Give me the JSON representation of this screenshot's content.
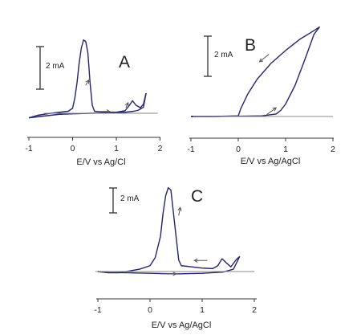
{
  "colors": {
    "curve": "#24246e",
    "axis": "#333333",
    "baseline": "#8a8a8a",
    "arrow": "#555555",
    "text": "#222222"
  },
  "chart_data": [
    {
      "type": "line",
      "panel_label": "A",
      "xlabel": "E/V vs Ag/Cl",
      "ylabel": "",
      "xlim": [
        -1,
        2
      ],
      "xticks": [
        -1,
        0,
        1,
        2
      ],
      "scale_bar": {
        "label": "2 mA",
        "value": 2
      },
      "series": [
        {
          "values": [
            [
              -1.0,
              -0.45
            ],
            [
              -0.8,
              -0.2
            ],
            [
              -0.5,
              0.0
            ],
            [
              -0.3,
              0.1
            ],
            [
              -0.1,
              0.2
            ],
            [
              0.0,
              0.5
            ],
            [
              0.05,
              1.5
            ],
            [
              0.1,
              3.0
            ],
            [
              0.15,
              5.0
            ],
            [
              0.2,
              6.5
            ],
            [
              0.25,
              7.3
            ],
            [
              0.3,
              7.15
            ],
            [
              0.35,
              6.0
            ],
            [
              0.4,
              3.0
            ],
            [
              0.45,
              0.8
            ],
            [
              0.5,
              0.2
            ],
            [
              0.7,
              0.12
            ],
            [
              1.0,
              0.1
            ],
            [
              1.2,
              0.25
            ],
            [
              1.3,
              0.8
            ],
            [
              1.37,
              1.25
            ],
            [
              1.45,
              0.8
            ],
            [
              1.55,
              0.55
            ],
            [
              1.62,
              0.9
            ],
            [
              1.68,
              2.0
            ]
          ]
        },
        {
          "values": [
            [
              1.68,
              2.0
            ],
            [
              1.62,
              0.6
            ],
            [
              1.5,
              0.3
            ],
            [
              1.4,
              0.2
            ],
            [
              1.2,
              0.1
            ],
            [
              0.8,
              0.05
            ],
            [
              0.4,
              0.0
            ],
            [
              0.0,
              -0.05
            ],
            [
              -0.3,
              -0.1
            ],
            [
              -0.6,
              -0.25
            ],
            [
              -0.9,
              -0.4
            ],
            [
              -1.0,
              -0.45
            ]
          ]
        }
      ],
      "baseline": [
        [
          -0.65,
          0
        ],
        [
          1.95,
          0
        ]
      ],
      "annotations": [
        {
          "type": "arrow",
          "from": [
            0.3,
            2.8
          ],
          "to": [
            0.37,
            3.3
          ]
        },
        {
          "type": "arrow",
          "from": [
            0.6,
            0.18
          ],
          "to": [
            0.85,
            0.18
          ]
        },
        {
          "type": "arrow",
          "from": [
            1.22,
            0.55
          ],
          "to": [
            1.27,
            1.05
          ]
        }
      ]
    },
    {
      "type": "line",
      "panel_label": "B",
      "xlabel": "E/V vs Ag/AgCl",
      "ylabel": "",
      "xlim": [
        -1,
        2
      ],
      "xticks": [
        -1,
        0,
        1,
        2
      ],
      "scale_bar": {
        "label": "2 mA",
        "value": 2
      },
      "series": [
        {
          "values": [
            [
              -1.0,
              0.0
            ],
            [
              -0.5,
              0.0
            ],
            [
              0.0,
              0.02
            ],
            [
              0.5,
              0.05
            ],
            [
              0.8,
              0.2
            ],
            [
              0.9,
              0.5
            ],
            [
              1.0,
              1.0
            ],
            [
              1.2,
              2.5
            ],
            [
              1.4,
              4.5
            ],
            [
              1.6,
              6.6
            ],
            [
              1.72,
              7.2
            ]
          ]
        },
        {
          "values": [
            [
              1.72,
              7.2
            ],
            [
              1.6,
              6.9
            ],
            [
              1.3,
              6.2
            ],
            [
              1.0,
              5.3
            ],
            [
              0.7,
              4.3
            ],
            [
              0.4,
              3.0
            ],
            [
              0.2,
              1.8
            ],
            [
              0.05,
              0.6
            ],
            [
              0.0,
              0.05
            ],
            [
              -0.5,
              0.0
            ],
            [
              -1.0,
              0.0
            ]
          ]
        }
      ],
      "baseline": [
        [
          -0.95,
          0
        ],
        [
          2.0,
          0
        ]
      ],
      "annotations": [
        {
          "type": "arrow",
          "from": [
            0.65,
            5.0
          ],
          "to": [
            0.45,
            4.4
          ]
        },
        {
          "type": "arrow",
          "from": [
            0.6,
            0.15
          ],
          "to": [
            0.8,
            0.7
          ]
        }
      ]
    },
    {
      "type": "line",
      "panel_label": "C",
      "xlabel": "E/V vs Ag/AgCl",
      "ylabel": "",
      "xlim": [
        -1,
        2
      ],
      "xticks": [
        -1,
        0,
        1,
        2
      ],
      "scale_bar": {
        "label": "2 mA",
        "value": 2
      },
      "series": [
        {
          "values": [
            [
              -1.0,
              0.0
            ],
            [
              -0.8,
              -0.1
            ],
            [
              -0.6,
              -0.1
            ],
            [
              -0.45,
              0.0
            ],
            [
              -0.2,
              0.2
            ],
            [
              0.0,
              0.5
            ],
            [
              0.1,
              1.2
            ],
            [
              0.2,
              3.0
            ],
            [
              0.25,
              5.0
            ],
            [
              0.3,
              6.5
            ],
            [
              0.35,
              7.2
            ],
            [
              0.4,
              7.0
            ],
            [
              0.45,
              5.0
            ],
            [
              0.5,
              3.0
            ],
            [
              0.55,
              1.0
            ],
            [
              0.6,
              0.5
            ],
            [
              0.8,
              0.4
            ],
            [
              1.0,
              0.3
            ],
            [
              1.2,
              0.25
            ],
            [
              1.3,
              0.5
            ],
            [
              1.38,
              1.1
            ],
            [
              1.45,
              0.8
            ],
            [
              1.55,
              0.4
            ],
            [
              1.65,
              1.0
            ],
            [
              1.72,
              1.3
            ]
          ]
        },
        {
          "values": [
            [
              1.72,
              1.3
            ],
            [
              1.6,
              0.2
            ],
            [
              1.4,
              -0.05
            ],
            [
              1.0,
              -0.15
            ],
            [
              0.5,
              -0.2
            ],
            [
              0.0,
              -0.15
            ],
            [
              -0.5,
              -0.1
            ],
            [
              -0.8,
              -0.1
            ],
            [
              -1.0,
              0.0
            ]
          ]
        }
      ],
      "baseline": [
        [
          -1.05,
          0
        ],
        [
          2.0,
          0
        ]
      ],
      "annotations": [
        {
          "type": "arrow",
          "from": [
            0.55,
            4.8
          ],
          "to": [
            0.58,
            5.5
          ]
        },
        {
          "type": "arrow",
          "from": [
            1.1,
            0.95
          ],
          "to": [
            0.85,
            0.95
          ]
        },
        {
          "type": "arrow",
          "from": [
            0.2,
            -0.2
          ],
          "to": [
            0.5,
            -0.2
          ]
        }
      ]
    }
  ]
}
